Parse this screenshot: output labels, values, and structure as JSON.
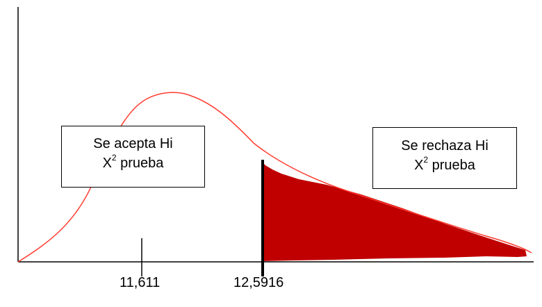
{
  "diagram": {
    "type": "chi-square distribution decision regions",
    "curve_color": "#ff3b2f",
    "rejection_fill_color": "#c00000",
    "axis_color": "#000000",
    "accept_box": {
      "line1": "Se acepta Hi",
      "x_symbol": "X",
      "x_superscript": "2",
      "line2_rest": " prueba"
    },
    "reject_box": {
      "line1": "Se rechaza Hi",
      "x_symbol": "X",
      "x_superscript": "2",
      "line2_rest": " prueba"
    },
    "observed_value_label": "11,611",
    "critical_value_label": "12,5916"
  }
}
